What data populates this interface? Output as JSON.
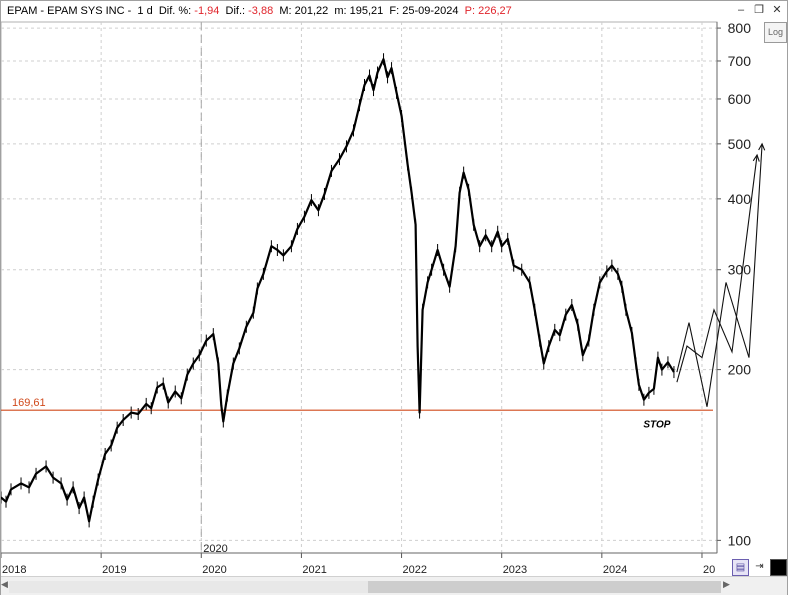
{
  "window": {
    "ticker_label": "EPAM - EPAM SYS INC -",
    "interval": "1 d",
    "diff_pct_label": "Dif. %:",
    "diff_pct_value": "-1,94",
    "diff_label": "Dif.:",
    "diff_value": "-3,88",
    "min_label": "M: 201,22",
    "max_label": "m: 195,21",
    "date_label": "F: 25-09-2024",
    "price_label": "P: 226,27",
    "minimize_icon": "minimize-icon",
    "restore_icon": "restore-icon",
    "close_icon": "close-icon"
  },
  "toolbar": {
    "log_button": "Log"
  },
  "colors": {
    "negative": "#e0242b",
    "support_line": "#d04a1c",
    "candles": "#000000",
    "grid": "#cfcfcf"
  },
  "chart_data": {
    "type": "line",
    "y_scale": "log",
    "ylim": [
      95,
      820
    ],
    "y_ticks": [
      100,
      200,
      300,
      400,
      500,
      600,
      700,
      800
    ],
    "x_ticks": [
      "2018",
      "2019",
      "2020",
      "2021",
      "2022",
      "2023",
      "2024",
      "20"
    ],
    "x_range": [
      2018.0,
      2025.15
    ],
    "grid": "on",
    "support_level": {
      "value": 169.61,
      "label": "169,61"
    },
    "split_marker": {
      "x": 2020.0,
      "label": "2020"
    },
    "annotations": [
      {
        "x": 2024.55,
        "y": 158,
        "text": "STOP"
      }
    ],
    "series": [
      {
        "values": [
          {
            "x": 2018.0,
            "y": 119
          },
          {
            "x": 2018.05,
            "y": 117
          },
          {
            "x": 2018.1,
            "y": 123
          },
          {
            "x": 2018.2,
            "y": 126
          },
          {
            "x": 2018.28,
            "y": 124
          },
          {
            "x": 2018.35,
            "y": 131
          },
          {
            "x": 2018.45,
            "y": 135
          },
          {
            "x": 2018.52,
            "y": 129
          },
          {
            "x": 2018.6,
            "y": 126
          },
          {
            "x": 2018.66,
            "y": 118
          },
          {
            "x": 2018.72,
            "y": 124
          },
          {
            "x": 2018.78,
            "y": 114
          },
          {
            "x": 2018.83,
            "y": 119
          },
          {
            "x": 2018.88,
            "y": 108
          },
          {
            "x": 2018.92,
            "y": 117
          },
          {
            "x": 2018.97,
            "y": 128
          },
          {
            "x": 2019.04,
            "y": 142
          },
          {
            "x": 2019.1,
            "y": 147
          },
          {
            "x": 2019.16,
            "y": 158
          },
          {
            "x": 2019.22,
            "y": 163
          },
          {
            "x": 2019.3,
            "y": 168
          },
          {
            "x": 2019.37,
            "y": 167
          },
          {
            "x": 2019.45,
            "y": 174
          },
          {
            "x": 2019.5,
            "y": 171
          },
          {
            "x": 2019.56,
            "y": 186
          },
          {
            "x": 2019.62,
            "y": 189
          },
          {
            "x": 2019.67,
            "y": 175
          },
          {
            "x": 2019.74,
            "y": 183
          },
          {
            "x": 2019.8,
            "y": 178
          },
          {
            "x": 2019.86,
            "y": 196
          },
          {
            "x": 2019.92,
            "y": 205
          },
          {
            "x": 2019.98,
            "y": 212
          },
          {
            "x": 2020.05,
            "y": 225
          },
          {
            "x": 2020.12,
            "y": 231
          },
          {
            "x": 2020.17,
            "y": 205
          },
          {
            "x": 2020.2,
            "y": 173
          },
          {
            "x": 2020.22,
            "y": 162
          },
          {
            "x": 2020.26,
            "y": 180
          },
          {
            "x": 2020.32,
            "y": 205
          },
          {
            "x": 2020.38,
            "y": 218
          },
          {
            "x": 2020.45,
            "y": 238
          },
          {
            "x": 2020.52,
            "y": 252
          },
          {
            "x": 2020.56,
            "y": 278
          },
          {
            "x": 2020.62,
            "y": 295
          },
          {
            "x": 2020.7,
            "y": 330
          },
          {
            "x": 2020.76,
            "y": 325
          },
          {
            "x": 2020.82,
            "y": 318
          },
          {
            "x": 2020.9,
            "y": 330
          },
          {
            "x": 2020.96,
            "y": 354
          },
          {
            "x": 2021.03,
            "y": 372
          },
          {
            "x": 2021.1,
            "y": 398
          },
          {
            "x": 2021.17,
            "y": 382
          },
          {
            "x": 2021.23,
            "y": 408
          },
          {
            "x": 2021.3,
            "y": 448
          },
          {
            "x": 2021.38,
            "y": 470
          },
          {
            "x": 2021.45,
            "y": 495
          },
          {
            "x": 2021.52,
            "y": 528
          },
          {
            "x": 2021.58,
            "y": 585
          },
          {
            "x": 2021.63,
            "y": 635
          },
          {
            "x": 2021.68,
            "y": 660
          },
          {
            "x": 2021.72,
            "y": 622
          },
          {
            "x": 2021.76,
            "y": 668
          },
          {
            "x": 2021.82,
            "y": 705
          },
          {
            "x": 2021.86,
            "y": 655
          },
          {
            "x": 2021.9,
            "y": 680
          },
          {
            "x": 2021.95,
            "y": 615
          },
          {
            "x": 2022.0,
            "y": 560
          },
          {
            "x": 2022.06,
            "y": 460
          },
          {
            "x": 2022.1,
            "y": 410
          },
          {
            "x": 2022.14,
            "y": 360
          },
          {
            "x": 2022.16,
            "y": 220
          },
          {
            "x": 2022.18,
            "y": 168
          },
          {
            "x": 2022.21,
            "y": 255
          },
          {
            "x": 2022.26,
            "y": 285
          },
          {
            "x": 2022.3,
            "y": 300
          },
          {
            "x": 2022.36,
            "y": 325
          },
          {
            "x": 2022.42,
            "y": 300
          },
          {
            "x": 2022.48,
            "y": 280
          },
          {
            "x": 2022.54,
            "y": 330
          },
          {
            "x": 2022.58,
            "y": 410
          },
          {
            "x": 2022.62,
            "y": 445
          },
          {
            "x": 2022.67,
            "y": 415
          },
          {
            "x": 2022.72,
            "y": 360
          },
          {
            "x": 2022.78,
            "y": 330
          },
          {
            "x": 2022.84,
            "y": 345
          },
          {
            "x": 2022.9,
            "y": 330
          },
          {
            "x": 2022.96,
            "y": 350
          },
          {
            "x": 2023.0,
            "y": 330
          },
          {
            "x": 2023.06,
            "y": 340
          },
          {
            "x": 2023.12,
            "y": 305
          },
          {
            "x": 2023.2,
            "y": 300
          },
          {
            "x": 2023.28,
            "y": 285
          },
          {
            "x": 2023.33,
            "y": 255
          },
          {
            "x": 2023.38,
            "y": 225
          },
          {
            "x": 2023.42,
            "y": 205
          },
          {
            "x": 2023.47,
            "y": 220
          },
          {
            "x": 2023.53,
            "y": 235
          },
          {
            "x": 2023.58,
            "y": 230
          },
          {
            "x": 2023.64,
            "y": 250
          },
          {
            "x": 2023.7,
            "y": 260
          },
          {
            "x": 2023.76,
            "y": 240
          },
          {
            "x": 2023.81,
            "y": 212
          },
          {
            "x": 2023.87,
            "y": 225
          },
          {
            "x": 2023.92,
            "y": 255
          },
          {
            "x": 2023.98,
            "y": 285
          },
          {
            "x": 2024.05,
            "y": 298
          },
          {
            "x": 2024.1,
            "y": 305
          },
          {
            "x": 2024.16,
            "y": 295
          },
          {
            "x": 2024.2,
            "y": 280
          },
          {
            "x": 2024.24,
            "y": 255
          },
          {
            "x": 2024.3,
            "y": 232
          },
          {
            "x": 2024.34,
            "y": 205
          },
          {
            "x": 2024.37,
            "y": 188
          },
          {
            "x": 2024.42,
            "y": 177
          },
          {
            "x": 2024.47,
            "y": 182
          },
          {
            "x": 2024.52,
            "y": 185
          },
          {
            "x": 2024.56,
            "y": 210
          },
          {
            "x": 2024.6,
            "y": 200
          },
          {
            "x": 2024.66,
            "y": 206
          },
          {
            "x": 2024.72,
            "y": 198
          }
        ]
      }
    ],
    "projections": [
      [
        {
          "x": 2024.75,
          "y": 190
        },
        {
          "x": 2024.85,
          "y": 220
        },
        {
          "x": 2025.0,
          "y": 210
        },
        {
          "x": 2025.12,
          "y": 255
        },
        {
          "x": 2025.3,
          "y": 215
        },
        {
          "x": 2025.55,
          "y": 478
        }
      ],
      [
        {
          "x": 2024.75,
          "y": 198
        },
        {
          "x": 2024.87,
          "y": 242
        },
        {
          "x": 2025.05,
          "y": 172
        },
        {
          "x": 2025.24,
          "y": 285
        },
        {
          "x": 2025.47,
          "y": 210
        },
        {
          "x": 2025.6,
          "y": 500
        }
      ]
    ]
  },
  "bottom": {
    "save_icon": "save-icon",
    "pin_icon": "pin-icon",
    "color_icon": "color-icon"
  }
}
